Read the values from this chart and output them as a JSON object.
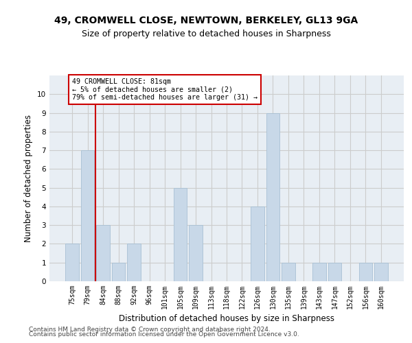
{
  "title1": "49, CROMWELL CLOSE, NEWTOWN, BERKELEY, GL13 9GA",
  "title2": "Size of property relative to detached houses in Sharpness",
  "xlabel": "Distribution of detached houses by size in Sharpness",
  "ylabel": "Number of detached properties",
  "categories": [
    "75sqm",
    "79sqm",
    "84sqm",
    "88sqm",
    "92sqm",
    "96sqm",
    "101sqm",
    "105sqm",
    "109sqm",
    "113sqm",
    "118sqm",
    "122sqm",
    "126sqm",
    "130sqm",
    "135sqm",
    "139sqm",
    "143sqm",
    "147sqm",
    "152sqm",
    "156sqm",
    "160sqm"
  ],
  "values": [
    2,
    7,
    3,
    1,
    2,
    0,
    0,
    5,
    3,
    0,
    0,
    0,
    4,
    9,
    1,
    0,
    1,
    1,
    0,
    1,
    1
  ],
  "bar_color": "#c8d8e8",
  "bar_edgecolor": "#a8c0d4",
  "annotation_text": "49 CROMWELL CLOSE: 81sqm\n← 5% of detached houses are smaller (2)\n79% of semi-detached houses are larger (31) →",
  "annotation_box_color": "#ffffff",
  "annotation_box_edgecolor": "#cc0000",
  "vline_color": "#cc0000",
  "ylim": [
    0,
    11
  ],
  "yticks": [
    0,
    1,
    2,
    3,
    4,
    5,
    6,
    7,
    8,
    9,
    10,
    11
  ],
  "grid_color": "#cccccc",
  "bg_color": "#e8eef4",
  "footer1": "Contains HM Land Registry data © Crown copyright and database right 2024.",
  "footer2": "Contains public sector information licensed under the Open Government Licence v3.0.",
  "title1_fontsize": 10,
  "title2_fontsize": 9,
  "tick_fontsize": 7,
  "ylabel_fontsize": 8.5,
  "xlabel_fontsize": 8.5,
  "footer_fontsize": 6.5
}
